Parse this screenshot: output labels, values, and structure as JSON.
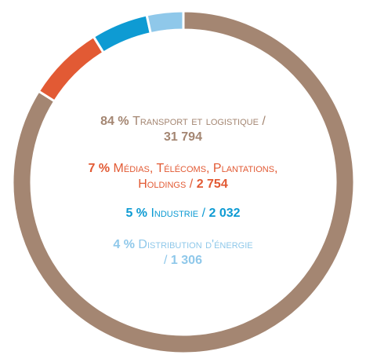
{
  "chart_data": {
    "type": "donut",
    "separator": "/",
    "series": [
      {
        "name": "Transport et logistique",
        "color": "#a48672",
        "value": 31794,
        "value_label": "31 794",
        "percent": 84,
        "percent_label": "84 %"
      },
      {
        "name": "Médias, Télécoms, Plantations, Holdings",
        "color": "#e25a34",
        "value": 2754,
        "value_label": "2 754",
        "percent": 7,
        "percent_label": "7 %"
      },
      {
        "name": "Industrie",
        "color": "#0e9bd3",
        "value": 2032,
        "value_label": "2 032",
        "percent": 5,
        "percent_label": "5 %"
      },
      {
        "name": "Distribution d'énergie",
        "color": "#8fc8ea",
        "value": 1306,
        "value_label": "1 306",
        "percent": 4,
        "percent_label": "4 %"
      }
    ]
  }
}
